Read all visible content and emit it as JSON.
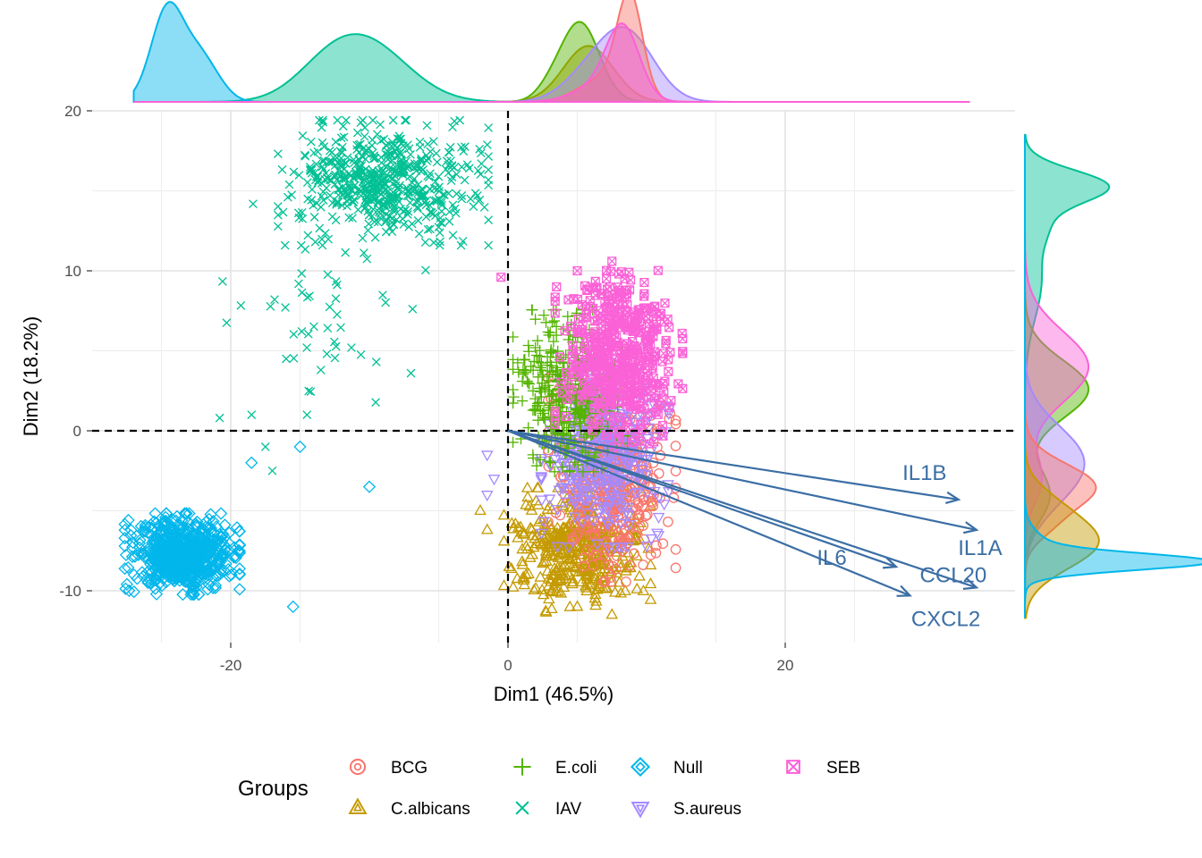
{
  "chart_data": {
    "type": "scatter",
    "subtype": "PCA biplot with marginal density plots",
    "xlabel": "Dim1 (46.5%)",
    "ylabel": "Dim2 (18.2%)",
    "xlim": [
      -30,
      33
    ],
    "ylim": [
      -13,
      20
    ],
    "x_ticks": [
      -20,
      0,
      20
    ],
    "y_ticks": [
      -10,
      0,
      10,
      20
    ],
    "x_tick_labels": [
      "-20",
      "0",
      "20"
    ],
    "y_tick_labels": [
      "-10",
      "0",
      "10",
      "20"
    ],
    "grid": true,
    "reference_lines": {
      "x": 0,
      "y": 0,
      "style": "dashed"
    },
    "legend": {
      "title": "Groups",
      "position": "bottom",
      "entries": [
        "BCG",
        "C.albicans",
        "E.coli",
        "IAV",
        "Null",
        "S.aureus",
        "SEB"
      ]
    },
    "series": [
      {
        "name": "BCG",
        "color": "#F8766D",
        "shape": "circle-open",
        "clusters": [
          {
            "center": [
              7.5,
              -3.0
            ],
            "spread": [
              2.0,
              2.8
            ],
            "n": 450
          }
        ]
      },
      {
        "name": "C.albicans",
        "color": "#C49A00",
        "shape": "triangle-up-open",
        "clusters": [
          {
            "center": [
              5.0,
              -7.5
            ],
            "spread": [
              2.3,
              1.7
            ],
            "n": 420
          }
        ]
      },
      {
        "name": "E.coli",
        "color": "#53B400",
        "shape": "plus",
        "clusters": [
          {
            "center": [
              4.5,
              2.5
            ],
            "spread": [
              1.8,
              2.2
            ],
            "n": 380
          }
        ]
      },
      {
        "name": "IAV",
        "color": "#00C094",
        "shape": "cross",
        "clusters": [
          {
            "center": [
              -9.0,
              15.5
            ],
            "spread": [
              3.3,
              1.7
            ],
            "n": 560
          },
          {
            "center": [
              -13.0,
              8.0
            ],
            "spread": [
              3.3,
              3.0
            ],
            "n": 45
          }
        ]
      },
      {
        "name": "Null",
        "color": "#00B6EB",
        "shape": "diamond-open",
        "clusters": [
          {
            "center": [
              -23.5,
              -7.7
            ],
            "spread": [
              1.8,
              1.1
            ],
            "n": 650
          }
        ]
      },
      {
        "name": "S.aureus",
        "color": "#A58AFF",
        "shape": "triangle-down-open",
        "clusters": [
          {
            "center": [
              7.0,
              -1.5
            ],
            "spread": [
              2.0,
              2.5
            ],
            "n": 380
          }
        ]
      },
      {
        "name": "SEB",
        "color": "#FB61D7",
        "shape": "square-cross-open",
        "clusters": [
          {
            "center": [
              8.0,
              4.5
            ],
            "spread": [
              2.0,
              2.4
            ],
            "n": 480
          }
        ]
      }
    ],
    "outliers": [
      {
        "series": "SEB",
        "points": [
          [
            -0.5,
            9.6
          ],
          [
            3.5,
            9.0
          ],
          [
            7.5,
            10.6
          ],
          [
            5.0,
            10.0
          ],
          [
            8.0,
            9.8
          ]
        ]
      },
      {
        "series": "IAV",
        "points": [
          [
            -9.5,
            4.3
          ],
          [
            -7.0,
            3.6
          ],
          [
            -20.8,
            0.8
          ],
          [
            -18.5,
            1.0
          ],
          [
            -14.5,
            1.0
          ],
          [
            -17.5,
            -1.0
          ],
          [
            -17.0,
            -2.5
          ],
          [
            -13.5,
            3.8
          ],
          [
            -16.0,
            4.5
          ]
        ]
      },
      {
        "series": "Null",
        "points": [
          [
            -10.0,
            -3.5
          ],
          [
            -15.0,
            -1.0
          ],
          [
            -15.5,
            -11.0
          ],
          [
            -18.5,
            -2.0
          ]
        ]
      },
      {
        "series": "S.aureus",
        "points": [
          [
            -1.5,
            -1.5
          ],
          [
            -1.0,
            -3.0
          ],
          [
            -1.5,
            -4.0
          ]
        ]
      },
      {
        "series": "C.albicans",
        "points": [
          [
            -2.0,
            -5.0
          ],
          [
            -1.5,
            -6.2
          ],
          [
            7.5,
            -11.5
          ],
          [
            5.0,
            -11.0
          ]
        ]
      }
    ],
    "loadings": [
      {
        "label": "IL1B",
        "x": 32.5,
        "y": -4.3
      },
      {
        "label": "IL1A",
        "x": 33.8,
        "y": -6.2
      },
      {
        "label": "IL6",
        "x": 28.0,
        "y": -8.5
      },
      {
        "label": "CCL20",
        "x": 33.8,
        "y": -9.8
      },
      {
        "label": "CXCL2",
        "x": 29.0,
        "y": -10.3
      }
    ],
    "loading_color": "#3B6EA5",
    "marginal_density": {
      "top": {
        "axis": "Dim1",
        "peak_order_high_to_low": [
          "Null",
          "BCG",
          "E.coli",
          "SEB",
          "C.albicans",
          "S.aureus",
          "IAV"
        ]
      },
      "right": {
        "axis": "Dim2",
        "peak_order_high_to_low": [
          "Null",
          "IAV",
          "E.coli",
          "SEB",
          "C.albicans",
          "BCG",
          "S.aureus"
        ]
      }
    }
  }
}
